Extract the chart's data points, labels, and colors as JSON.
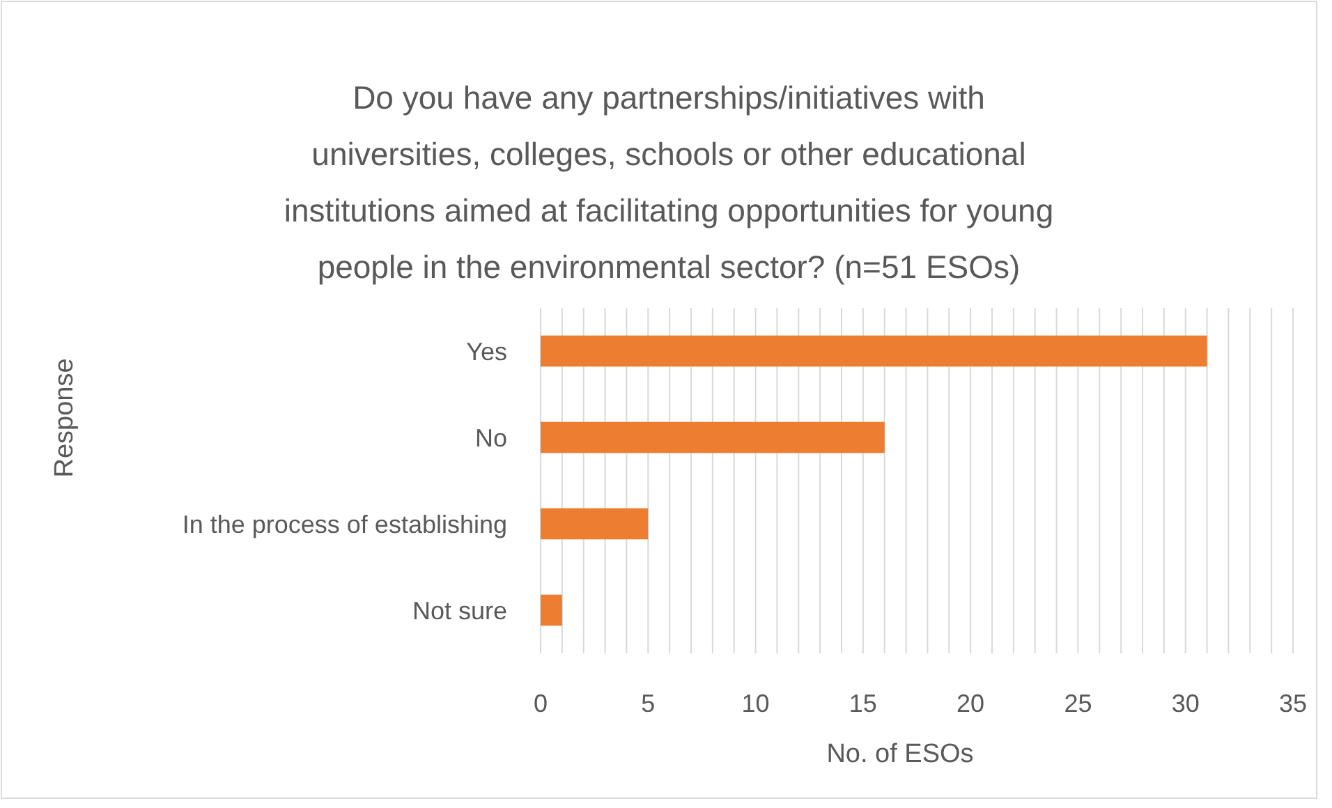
{
  "chart_data": {
    "type": "bar",
    "orientation": "horizontal",
    "title": "Do you have any partnerships/initiatives with universities, colleges, schools or other educational institutions aimed at facilitating opportunities for young people in the environmental sector? (n=51 ESOs)",
    "xlabel": "No. of ESOs",
    "ylabel": "Response",
    "categories": [
      "Yes",
      "No",
      "In the process of establishing",
      "Not sure"
    ],
    "values": [
      31,
      16,
      5,
      1
    ],
    "color": "#ed7d31",
    "xlim": [
      0,
      35
    ],
    "xticks": [
      0,
      {
        "value": 1,
        "label": null
      },
      {
        "value": 2,
        "label": null
      },
      {
        "value": 3,
        "label": null
      },
      {
        "value": 4,
        "label": null
      },
      5,
      {
        "value": 6,
        "label": null
      },
      {
        "value": 7,
        "label": null
      },
      {
        "value": 8,
        "label": null
      },
      {
        "value": 9,
        "label": null
      },
      10,
      {
        "value": 11,
        "label": null
      },
      {
        "value": 12,
        "label": null
      },
      {
        "value": 13,
        "label": null
      },
      {
        "value": 14,
        "label": null
      },
      15,
      {
        "value": 16,
        "label": null
      },
      {
        "value": 17,
        "label": null
      },
      {
        "value": 18,
        "label": null
      },
      {
        "value": 19,
        "label": null
      },
      20,
      {
        "value": 21,
        "label": null
      },
      {
        "value": 22,
        "label": null
      },
      {
        "value": 23,
        "label": null
      },
      {
        "value": 24,
        "label": null
      },
      25,
      {
        "value": 26,
        "label": null
      },
      {
        "value": 27,
        "label": null
      },
      {
        "value": 28,
        "label": null
      },
      {
        "value": 29,
        "label": null
      },
      30,
      {
        "value": 31,
        "label": null
      },
      {
        "value": 32,
        "label": null
      },
      {
        "value": 33,
        "label": null
      },
      {
        "value": 34,
        "label": null
      },
      35
    ],
    "grid": "x"
  }
}
